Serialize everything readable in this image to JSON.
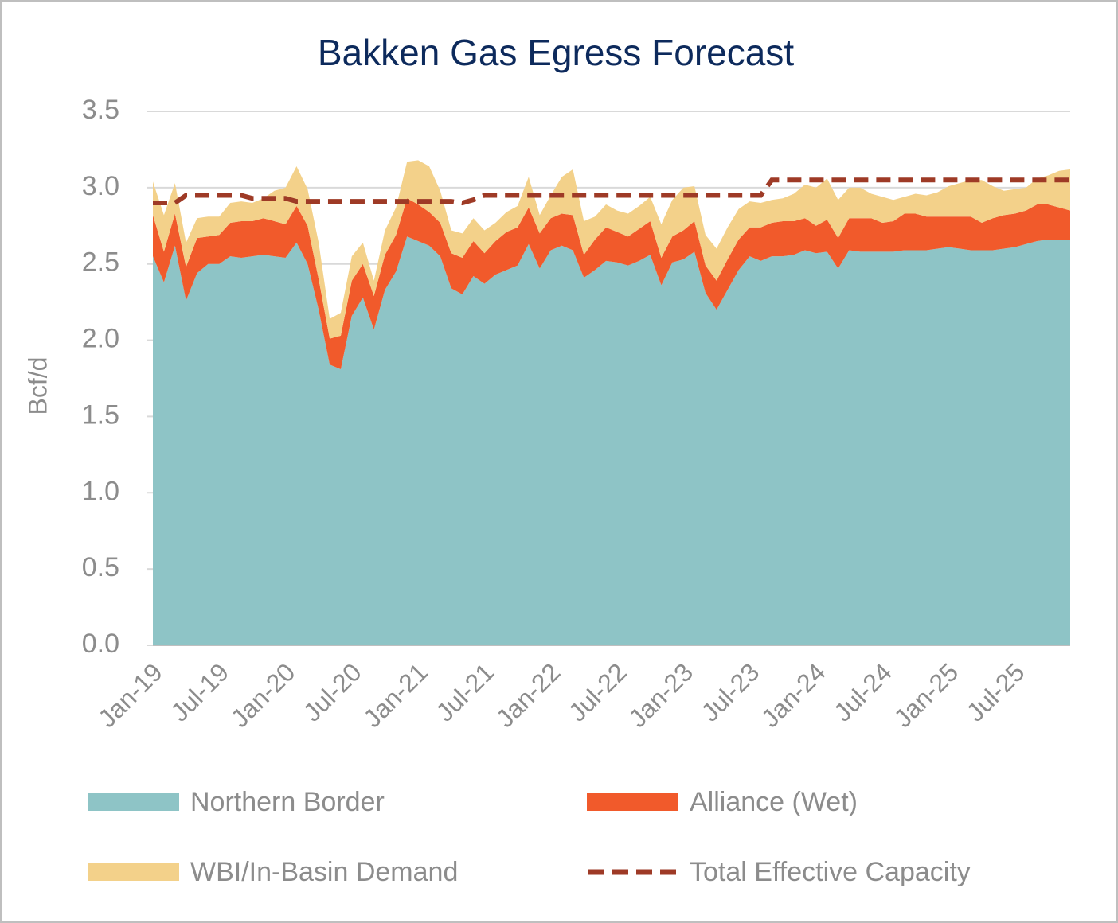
{
  "chart_data": {
    "type": "stacked-area",
    "title": "Bakken Gas Egress Forecast",
    "y_label": "Bcf/d",
    "categories": [
      "Jan-19",
      null,
      null,
      null,
      null,
      null,
      "Jul-19",
      null,
      null,
      null,
      null,
      null,
      "Jan-20",
      null,
      null,
      null,
      null,
      null,
      "Jul-20",
      null,
      null,
      null,
      null,
      null,
      "Jan-21",
      null,
      null,
      null,
      null,
      null,
      "Jul-21",
      null,
      null,
      null,
      null,
      null,
      "Jan-22",
      null,
      null,
      null,
      null,
      null,
      "Jul-22",
      null,
      null,
      null,
      null,
      null,
      "Jan-23",
      null,
      null,
      null,
      null,
      null,
      "Jul-23",
      null,
      null,
      null,
      null,
      null,
      "Jan-24",
      null,
      null,
      null,
      null,
      null,
      "Jul-24",
      null,
      null,
      null,
      null,
      null,
      "Jan-25",
      null,
      null,
      null,
      null,
      null,
      "Jul-25",
      null,
      null,
      null,
      null,
      null
    ],
    "series": [
      {
        "name": "Northern Border",
        "color": "#8ec4c6",
        "values": [
          2.55,
          2.38,
          2.62,
          2.26,
          2.44,
          2.5,
          2.5,
          2.55,
          2.54,
          2.55,
          2.56,
          2.55,
          2.54,
          2.64,
          2.5,
          2.2,
          1.84,
          1.81,
          2.16,
          2.28,
          2.07,
          2.33,
          2.45,
          2.68,
          2.65,
          2.62,
          2.55,
          2.34,
          2.3,
          2.42,
          2.37,
          2.43,
          2.46,
          2.49,
          2.63,
          2.47,
          2.59,
          2.62,
          2.59,
          2.41,
          2.46,
          2.52,
          2.51,
          2.49,
          2.52,
          2.56,
          2.36,
          2.51,
          2.53,
          2.58,
          2.31,
          2.2,
          2.33,
          2.46,
          2.55,
          2.52,
          2.55,
          2.55,
          2.56,
          2.59,
          2.57,
          2.58,
          2.47,
          2.59,
          2.58,
          2.58,
          2.58,
          2.58,
          2.59,
          2.59,
          2.59,
          2.6,
          2.61,
          2.6,
          2.59,
          2.59,
          2.59,
          2.6,
          2.61,
          2.63,
          2.65,
          2.66,
          2.66,
          2.66
        ]
      },
      {
        "name": "Alliance (Wet)",
        "color": "#f15a2b",
        "values": [
          0.27,
          0.2,
          0.21,
          0.22,
          0.23,
          0.18,
          0.19,
          0.22,
          0.24,
          0.23,
          0.24,
          0.23,
          0.22,
          0.24,
          0.25,
          0.2,
          0.17,
          0.22,
          0.23,
          0.22,
          0.22,
          0.23,
          0.24,
          0.25,
          0.24,
          0.22,
          0.22,
          0.23,
          0.24,
          0.23,
          0.2,
          0.22,
          0.25,
          0.25,
          0.24,
          0.23,
          0.21,
          0.21,
          0.23,
          0.15,
          0.2,
          0.22,
          0.2,
          0.19,
          0.21,
          0.22,
          0.18,
          0.17,
          0.19,
          0.2,
          0.18,
          0.19,
          0.2,
          0.2,
          0.19,
          0.22,
          0.22,
          0.23,
          0.22,
          0.21,
          0.18,
          0.21,
          0.2,
          0.21,
          0.22,
          0.22,
          0.19,
          0.2,
          0.24,
          0.24,
          0.22,
          0.21,
          0.2,
          0.21,
          0.22,
          0.18,
          0.21,
          0.22,
          0.22,
          0.22,
          0.24,
          0.23,
          0.21,
          0.19
        ]
      },
      {
        "name": "WBI/In-Basin Demand",
        "color": "#f3d18a",
        "values": [
          0.22,
          0.24,
          0.2,
          0.16,
          0.13,
          0.13,
          0.12,
          0.13,
          0.13,
          0.12,
          0.13,
          0.2,
          0.24,
          0.26,
          0.24,
          0.24,
          0.13,
          0.15,
          0.16,
          0.14,
          0.1,
          0.16,
          0.18,
          0.24,
          0.29,
          0.3,
          0.21,
          0.15,
          0.16,
          0.15,
          0.15,
          0.12,
          0.13,
          0.14,
          0.2,
          0.12,
          0.15,
          0.24,
          0.3,
          0.22,
          0.15,
          0.15,
          0.14,
          0.15,
          0.15,
          0.16,
          0.22,
          0.24,
          0.28,
          0.23,
          0.2,
          0.21,
          0.21,
          0.2,
          0.17,
          0.16,
          0.15,
          0.15,
          0.18,
          0.22,
          0.25,
          0.27,
          0.25,
          0.2,
          0.2,
          0.16,
          0.17,
          0.14,
          0.11,
          0.13,
          0.14,
          0.16,
          0.2,
          0.22,
          0.24,
          0.28,
          0.21,
          0.16,
          0.16,
          0.15,
          0.17,
          0.19,
          0.24,
          0.27
        ]
      },
      {
        "name": "Total Effective Capacity",
        "type": "line",
        "dashed": true,
        "color": "#9e3a26",
        "values": [
          2.9,
          2.9,
          2.9,
          2.95,
          2.95,
          2.95,
          2.95,
          2.95,
          2.95,
          2.93,
          2.93,
          2.93,
          2.93,
          2.91,
          2.91,
          2.91,
          2.91,
          2.91,
          2.91,
          2.91,
          2.91,
          2.91,
          2.91,
          2.91,
          2.91,
          2.91,
          2.91,
          2.91,
          2.9,
          2.92,
          2.95,
          2.95,
          2.95,
          2.95,
          2.95,
          2.95,
          2.95,
          2.95,
          2.95,
          2.95,
          2.95,
          2.95,
          2.95,
          2.95,
          2.95,
          2.95,
          2.95,
          2.95,
          2.95,
          2.95,
          2.95,
          2.95,
          2.95,
          2.95,
          2.95,
          2.95,
          3.05,
          3.05,
          3.05,
          3.05,
          3.05,
          3.05,
          3.05,
          3.05,
          3.05,
          3.05,
          3.05,
          3.05,
          3.05,
          3.05,
          3.05,
          3.05,
          3.05,
          3.05,
          3.05,
          3.05,
          3.05,
          3.05,
          3.05,
          3.05,
          3.05,
          3.05,
          3.05,
          3.05
        ]
      }
    ],
    "ylim": [
      0,
      3.5
    ],
    "yticks": [
      {
        "value": 0,
        "label": "0.0"
      },
      {
        "value": 0.5,
        "label": "0.5"
      },
      {
        "value": 1,
        "label": "1.0"
      },
      {
        "value": 1.5,
        "label": "1.5"
      },
      {
        "value": 2,
        "label": "2.0"
      },
      {
        "value": 2.5,
        "label": "2.5"
      },
      {
        "value": 3,
        "label": "3.0"
      },
      {
        "value": 3.5,
        "label": "3.5"
      }
    ],
    "grid": true,
    "legend": "bottom"
  }
}
